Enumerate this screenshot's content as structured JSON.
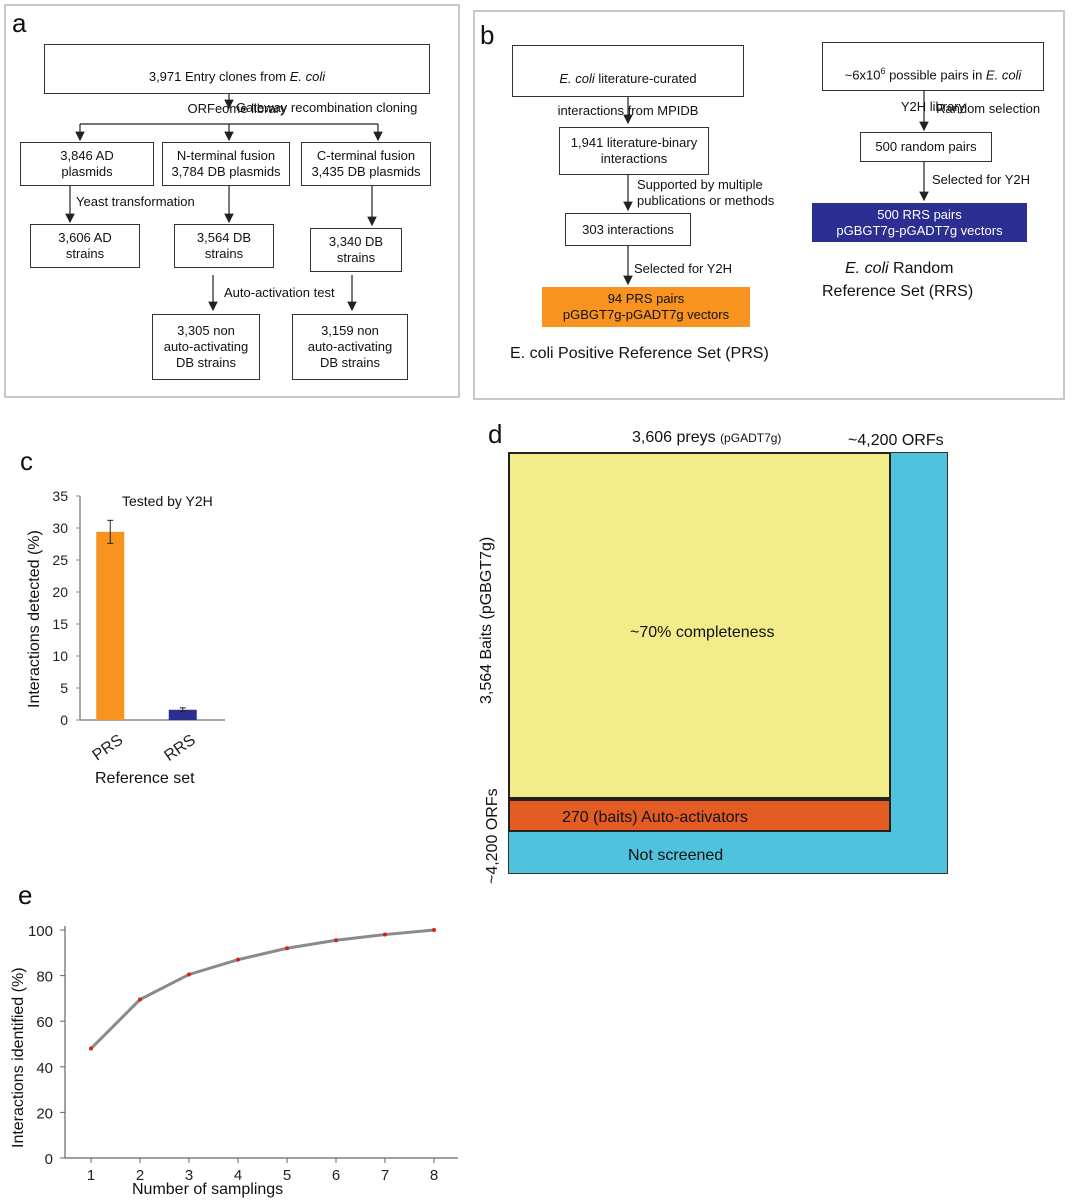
{
  "colors": {
    "orange": "#f7931e",
    "navy": "#2b2f92",
    "yellow": "#f2ec8a",
    "cyan": "#4fc3de",
    "red_orange": "#e35c24",
    "grey_line": "#888888",
    "point_red": "#d62020"
  },
  "panel_a": {
    "letter": "a",
    "entry_line1": "3,971 Entry clones from ",
    "entry_italic": "E. coli",
    "entry_line2": "ORFeome library",
    "gateway": "Gateway recombination cloning",
    "ad_plasmids": "3,846 AD\nplasmids",
    "n_terminal": "N-terminal fusion\n3,784 DB plasmids",
    "c_terminal": "C-terminal fusion\n3,435 DB plasmids",
    "yeast": "Yeast transformation",
    "ad_strains": "3,606 AD\nstrains",
    "db_strains_n": "3,564 DB\nstrains",
    "db_strains_c": "3,340 DB\nstrains",
    "auto_test": "Auto-activation test",
    "non_auto_n": "3,305 non\nauto-activating\nDB strains",
    "non_auto_c": "3,159 non\nauto-activating\nDB strains"
  },
  "panel_b": {
    "letter": "b",
    "lit_italic": "E. coli",
    "lit_line1": " literature-curated",
    "lit_line2": "interactions from MPIDB",
    "binary": "1,941 literature-binary\ninteractions",
    "supported": "Supported by multiple\npublications or methods",
    "interactions303": "303 interactions",
    "selected_prs": "Selected for Y2H",
    "prs_box": "94 PRS pairs\npGBGT7g-pGADT7g vectors",
    "prs_caption": "E. coli Positive Reference Set (PRS)",
    "pairs_pre": "~6x10",
    "pairs_sup": "6",
    "pairs_mid": " possible pairs in ",
    "pairs_italic": "E. coli",
    "pairs_line2": "Y2H library",
    "random_sel": "Random selection",
    "random500": "500 random pairs",
    "selected_rrs": "Selected for Y2H",
    "rrs_box": "500 RRS pairs\npGBGT7g-pGADT7g vectors",
    "rrs_caption_italic": "E. coli",
    "rrs_caption_rest": " Random",
    "rrs_caption_line2": "Reference Set (RRS)"
  },
  "panel_c": {
    "letter": "c",
    "title": "Tested by Y2H",
    "xlabel": "Reference set",
    "ylabel": "Interactions detected (%)"
  },
  "panel_d": {
    "letter": "d",
    "preys": "3,606 preys",
    "preys_small": "(pGADT7g)",
    "orfs_top": "~4,200 ORFs",
    "baits": "3,564 Baits (pGBGT7g)",
    "orfs_left": "~4,200 ORFs",
    "completeness": "~70% completeness",
    "auto_activators": "270 (baits) Auto-activators",
    "not_screened": "Not screened"
  },
  "panel_e": {
    "letter": "e",
    "xlabel": "Number of samplings",
    "ylabel": "Interactions identified (%)"
  },
  "chart_data": [
    {
      "panel": "c",
      "type": "bar",
      "title": "Tested by Y2H",
      "categories": [
        "PRS",
        "RRS"
      ],
      "values": [
        29.4,
        1.6
      ],
      "errors": [
        1.8,
        0.3
      ],
      "colors": [
        "#f7931e",
        "#2b2f92"
      ],
      "xlabel": "Reference set",
      "ylabel": "Interactions detected (%)",
      "ylim": [
        0,
        35
      ],
      "yticks": [
        0,
        5,
        10,
        15,
        20,
        25,
        30,
        35
      ]
    },
    {
      "panel": "e",
      "type": "line",
      "x": [
        1,
        2,
        3,
        4,
        5,
        6,
        7,
        8
      ],
      "y": [
        48,
        69.5,
        80.5,
        87,
        92,
        95.5,
        98,
        100
      ],
      "xlabel": "Number of samplings",
      "ylabel": "Interactions identified (%)",
      "ylim": [
        0,
        100
      ],
      "yticks": [
        0,
        20,
        40,
        60,
        80,
        100
      ],
      "xticks": [
        1,
        2,
        3,
        4,
        5,
        6,
        7,
        8
      ]
    }
  ]
}
